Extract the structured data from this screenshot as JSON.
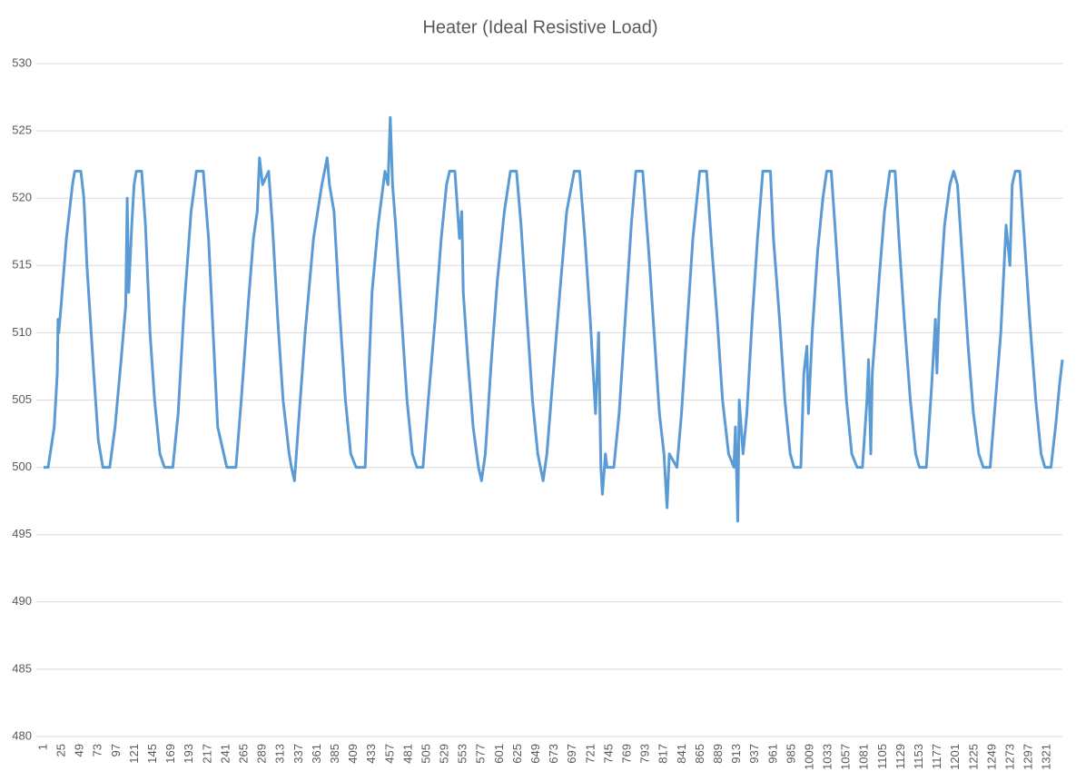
{
  "chart_data": {
    "type": "line",
    "title": "Heater (Ideal Resistive Load)",
    "x": [
      1,
      7,
      15,
      19,
      20,
      21,
      24,
      31,
      39,
      42,
      50,
      54,
      58,
      67,
      73,
      79,
      88,
      95,
      103,
      109,
      111,
      113,
      117,
      120,
      123,
      130,
      135,
      141,
      147,
      154,
      160,
      171,
      178,
      186,
      195,
      202,
      211,
      218,
      224,
      230,
      242,
      254,
      261,
      270,
      277,
      282,
      285,
      289,
      297,
      302,
      309,
      316,
      324,
      327,
      331,
      336,
      345,
      356,
      367,
      374,
      377,
      383,
      390,
      398,
      405,
      412,
      424,
      428,
      433,
      441,
      450,
      454,
      457,
      460,
      464,
      472,
      479,
      486,
      492,
      500,
      507,
      516,
      524,
      531,
      535,
      542,
      548,
      551,
      553,
      559,
      566,
      573,
      577,
      582,
      590,
      598,
      607,
      615,
      623,
      629,
      637,
      644,
      651,
      658,
      663,
      670,
      680,
      689,
      699,
      706,
      713,
      720,
      727,
      731,
      734,
      736,
      740,
      742,
      751,
      758,
      766,
      774,
      780,
      789,
      797,
      804,
      811,
      817,
      821,
      824,
      834,
      840,
      848,
      855,
      864,
      873,
      879,
      887,
      894,
      902,
      909,
      911,
      914,
      916,
      921,
      926,
      933,
      940,
      947,
      957,
      961,
      969,
      976,
      983,
      988,
      997,
      1001,
      1005,
      1007,
      1012,
      1019,
      1026,
      1031,
      1037,
      1043,
      1050,
      1057,
      1064,
      1071,
      1078,
      1084,
      1086,
      1089,
      1091,
      1095,
      1100,
      1107,
      1114,
      1121,
      1126,
      1133,
      1141,
      1148,
      1153,
      1162,
      1169,
      1174,
      1176,
      1179,
      1186,
      1193,
      1198,
      1203,
      1210,
      1217,
      1224,
      1231,
      1237,
      1246,
      1253,
      1260,
      1267,
      1272,
      1275,
      1279,
      1285,
      1291,
      1298,
      1306,
      1313,
      1318,
      1326,
      1332,
      1337,
      1341
    ],
    "series": [
      {
        "color": "#5b9bd5",
        "values": [
          500,
          500,
          503,
          507,
          511,
          510,
          512,
          517,
          521,
          522,
          522,
          520,
          515,
          507,
          502,
          500,
          500,
          503,
          508,
          512,
          520,
          513,
          518,
          521,
          522,
          522,
          518,
          510,
          505,
          501,
          500,
          500,
          504,
          512,
          519,
          522,
          522,
          517,
          510,
          503,
          500,
          500,
          505,
          512,
          517,
          519,
          523,
          521,
          522,
          518,
          511,
          505,
          501,
          500,
          499,
          503,
          510,
          517,
          521,
          523,
          521,
          519,
          512,
          505,
          501,
          500,
          500,
          506,
          513,
          518,
          522,
          521,
          526,
          521,
          518,
          511,
          505,
          501,
          500,
          500,
          505,
          511,
          517,
          521,
          522,
          522,
          517,
          519,
          513,
          508,
          503,
          500,
          499,
          501,
          508,
          514,
          519,
          522,
          522,
          518,
          511,
          505,
          501,
          499,
          501,
          506,
          513,
          519,
          522,
          522,
          517,
          511,
          504,
          510,
          500,
          498,
          501,
          500,
          500,
          504,
          511,
          518,
          522,
          522,
          516,
          510,
          504,
          501,
          497,
          501,
          500,
          504,
          511,
          517,
          522,
          522,
          517,
          511,
          505,
          501,
          500,
          503,
          496,
          505,
          501,
          504,
          511,
          517,
          522,
          522,
          517,
          511,
          505,
          501,
          500,
          500,
          507,
          509,
          504,
          510,
          516,
          520,
          522,
          522,
          517,
          511,
          505,
          501,
          500,
          500,
          505,
          508,
          501,
          507,
          510,
          514,
          519,
          522,
          522,
          517,
          511,
          505,
          501,
          500,
          500,
          506,
          511,
          507,
          512,
          518,
          521,
          522,
          521,
          515,
          509,
          504,
          501,
          500,
          500,
          505,
          510,
          518,
          515,
          521,
          522,
          522,
          517,
          511,
          505,
          501,
          500,
          500,
          503,
          506,
          508
        ]
      }
    ],
    "xlim": [
      1,
      1341
    ],
    "xticks": [
      1,
      25,
      49,
      73,
      97,
      121,
      145,
      169,
      193,
      217,
      241,
      265,
      289,
      313,
      337,
      361,
      385,
      409,
      433,
      457,
      481,
      505,
      529,
      553,
      577,
      601,
      625,
      649,
      673,
      697,
      721,
      745,
      769,
      793,
      817,
      841,
      865,
      889,
      913,
      937,
      961,
      985,
      1009,
      1033,
      1057,
      1081,
      1105,
      1129,
      1153,
      1177,
      1201,
      1225,
      1249,
      1273,
      1297,
      1321
    ],
    "ylim": [
      480,
      530
    ],
    "yticks": [
      480,
      485,
      490,
      495,
      500,
      505,
      510,
      515,
      520,
      525,
      530
    ],
    "grid": true
  }
}
